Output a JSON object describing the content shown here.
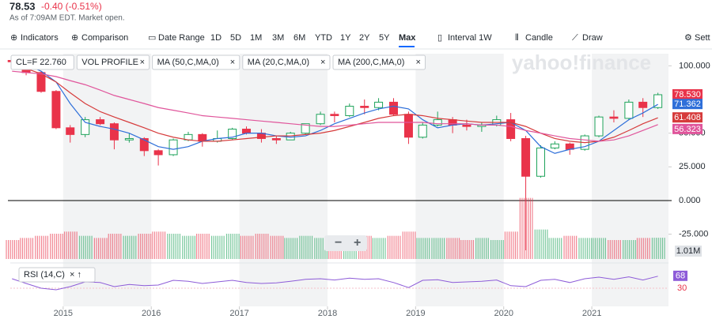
{
  "quote": {
    "price": "78.53",
    "change": "-0.40 (-0.51%)",
    "status": "As of 7:09AM EDT. Market open."
  },
  "toolbar": {
    "items": [
      "Indicators",
      "Comparison",
      "Date Range",
      "1D",
      "5D",
      "1M",
      "3M",
      "6M",
      "YTD",
      "1Y",
      "2Y",
      "5Y",
      "Max",
      "Interval 1W",
      "Candle",
      "Draw",
      "Sett"
    ],
    "active": "Max"
  },
  "chart_data": {
    "type": "candlestick",
    "ticker_label": "CL=F 22.760",
    "watermark": "yahoo!finance",
    "x": [
      2014.42,
      2014.58,
      2014.75,
      2014.92,
      2015.08,
      2015.25,
      2015.42,
      2015.58,
      2015.75,
      2015.92,
      2016.08,
      2016.25,
      2016.42,
      2016.58,
      2016.75,
      2016.92,
      2017.08,
      2017.25,
      2017.42,
      2017.58,
      2017.75,
      2017.92,
      2018.08,
      2018.25,
      2018.42,
      2018.58,
      2018.75,
      2018.92,
      2019.08,
      2019.25,
      2019.42,
      2019.58,
      2019.75,
      2019.92,
      2020.08,
      2020.25,
      2020.42,
      2020.58,
      2020.75,
      2020.92,
      2021.08,
      2021.25,
      2021.42,
      2021.58,
      2021.75
    ],
    "open": [
      104,
      103,
      95,
      81,
      54,
      49,
      60,
      57,
      45,
      46,
      37,
      34,
      45,
      49,
      44,
      46,
      53,
      50,
      46,
      45,
      50,
      57,
      64,
      63,
      70,
      69,
      73,
      64,
      47,
      56,
      60,
      56,
      55,
      56,
      60,
      46,
      18,
      39,
      42,
      38,
      48,
      62,
      61,
      73,
      69
    ],
    "high": [
      107,
      104,
      96,
      82,
      56,
      62,
      62,
      58,
      50,
      47,
      38,
      46,
      51,
      50,
      52,
      54,
      55,
      53,
      48,
      51,
      57,
      66,
      66,
      72,
      75,
      76,
      76,
      66,
      58,
      66,
      62,
      60,
      58,
      63,
      65,
      48,
      41,
      44,
      43,
      49,
      63,
      67,
      75,
      76,
      80
    ],
    "low": [
      100,
      93,
      80,
      53,
      43,
      47,
      56,
      38,
      43,
      33,
      26,
      33,
      44,
      40,
      43,
      45,
      49,
      43,
      42,
      45,
      49,
      56,
      58,
      62,
      64,
      67,
      63,
      42,
      46,
      55,
      50,
      52,
      51,
      55,
      44,
      -37,
      17,
      38,
      34,
      37,
      47,
      58,
      60,
      62,
      68
    ],
    "close": [
      103,
      95,
      81,
      54,
      49,
      60,
      57,
      45,
      46,
      37,
      34,
      45,
      49,
      44,
      46,
      53,
      50,
      46,
      45,
      50,
      57,
      64,
      63,
      70,
      69,
      73,
      64,
      47,
      56,
      60,
      56,
      55,
      56,
      60,
      46,
      18,
      39,
      42,
      38,
      48,
      62,
      61,
      73,
      69,
      78.53
    ],
    "up_color": "#1fa35b",
    "down_color": "#e9334a",
    "xlim": [
      2014.4,
      2021.87
    ],
    "xticks": [
      2015,
      2016,
      2017,
      2018,
      2019,
      2020,
      2021
    ],
    "ylim": [
      -44,
      109
    ],
    "yticks": [
      {
        "value": 100,
        "label": "100.000"
      },
      {
        "value": 50,
        "label": "50.000"
      },
      {
        "value": 25,
        "label": "25.000"
      },
      {
        "value": 0,
        "label": "0.000"
      },
      {
        "value": -25,
        "label": "-25.000"
      }
    ],
    "series": [
      {
        "name": "MA (50,C,MA,0)",
        "color": "#2e6fd9",
        "values": [
          104,
          101,
          96,
          88,
          72,
          58,
          55,
          53,
          50,
          45,
          40,
          38,
          40,
          44,
          46,
          47,
          50,
          50,
          48,
          47,
          48,
          52,
          57,
          61,
          65,
          68,
          70,
          68,
          60,
          54,
          56,
          57,
          56,
          57,
          58,
          52,
          40,
          35,
          38,
          40,
          44,
          52,
          60,
          65,
          71.362
        ]
      },
      {
        "name": "MA (20,C,MA,0)",
        "color": "#d63b3b",
        "values": [
          100,
          98,
          94,
          88,
          80,
          72,
          66,
          62,
          58,
          54,
          50,
          47,
          45,
          44,
          44,
          45,
          46,
          47,
          48,
          48,
          49,
          50,
          52,
          55,
          58,
          61,
          63,
          64,
          63,
          61,
          60,
          59,
          58,
          58,
          58,
          55,
          50,
          46,
          44,
          43,
          44,
          47,
          52,
          57,
          61.408
        ]
      },
      {
        "name": "MA (200,C,MA,0)",
        "color": "#e0559b",
        "values": [
          96,
          95,
          94,
          92,
          89,
          86,
          82,
          78,
          75,
          72,
          69,
          67,
          65,
          63,
          62,
          61,
          60,
          59,
          58,
          57,
          56,
          55,
          55,
          56,
          57,
          58,
          58,
          58,
          58,
          57,
          57,
          57,
          56,
          56,
          55,
          52,
          50,
          48,
          46,
          45,
          44,
          45,
          48,
          52,
          56.323
        ]
      }
    ],
    "price_labels": [
      {
        "value": 78.53,
        "label": "78.530",
        "color": "#e9334a"
      },
      {
        "value": 71.362,
        "label": "71.362",
        "color": "#2e6fd9"
      },
      {
        "value": 61.408,
        "label": "61.408",
        "color": "#d63b3b"
      },
      {
        "value": 56.323,
        "label": "56.323",
        "color": "#e0559b"
      }
    ],
    "volume": {
      "name": "VOL PROFILE",
      "ylim": [
        0,
        3
      ],
      "values": [
        0.9,
        1.0,
        1.1,
        1.2,
        1.3,
        1.1,
        1.0,
        1.2,
        1.1,
        1.2,
        1.3,
        1.2,
        1.1,
        1.2,
        1.1,
        1.2,
        1.1,
        1.2,
        1.1,
        1.0,
        1.1,
        1.0,
        1.1,
        1.0,
        1.1,
        1.0,
        1.1,
        1.3,
        1.0,
        1.0,
        1.0,
        0.9,
        1.0,
        0.9,
        1.3,
        2.9,
        1.4,
        1.0,
        1.1,
        1.0,
        1.0,
        0.9,
        0.9,
        1.0,
        1.01
      ],
      "last_label": {
        "value": 1.01,
        "label": "1.01M"
      }
    },
    "rsi": {
      "name": "RSI (14,C)",
      "color": "#8d5bd8",
      "ylim": [
        0,
        100
      ],
      "yticks": [
        30
      ],
      "last_label": 68,
      "values": [
        60,
        45,
        30,
        25,
        35,
        50,
        48,
        35,
        42,
        38,
        40,
        55,
        52,
        45,
        50,
        55,
        48,
        45,
        47,
        52,
        58,
        60,
        56,
        62,
        58,
        60,
        48,
        32,
        55,
        57,
        48,
        50,
        52,
        56,
        38,
        35,
        55,
        58,
        48,
        60,
        65,
        58,
        66,
        56,
        68
      ]
    }
  }
}
